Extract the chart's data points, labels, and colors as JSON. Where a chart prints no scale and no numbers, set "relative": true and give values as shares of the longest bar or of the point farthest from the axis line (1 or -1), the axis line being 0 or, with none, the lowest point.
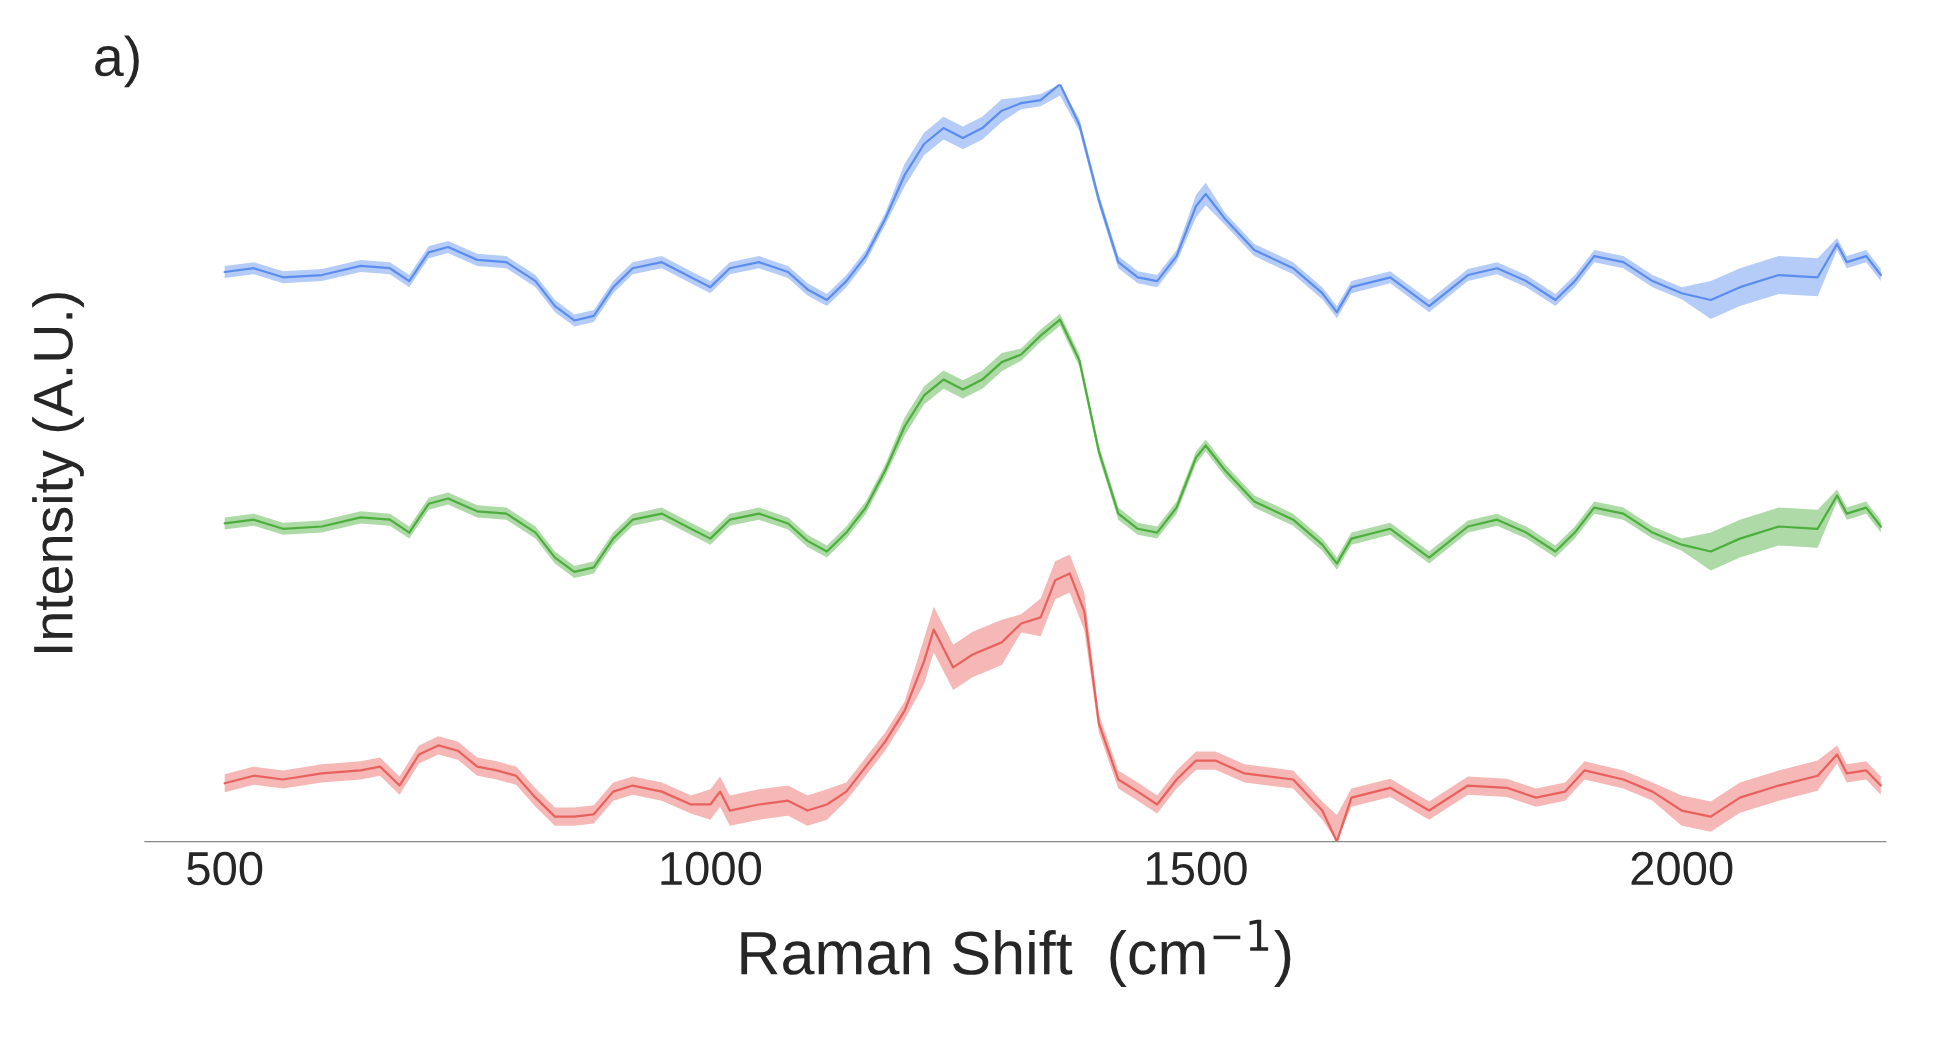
{
  "chart_data": {
    "type": "line",
    "title": "a)",
    "xlabel": "Raman Shift  (cm$^{−1}$)",
    "ylabel": "Intensity (A.U.)",
    "relative": true,
    "xlim": [
      418,
      2210
    ],
    "xticks": [
      500,
      1000,
      1500,
      2000
    ],
    "grid": false,
    "series": [
      {
        "color": "#5b8def",
        "x": [
          500,
          530,
          560,
          600,
          640,
          670,
          690,
          710,
          730,
          760,
          790,
          820,
          840,
          860,
          880,
          900,
          920,
          950,
          980,
          1000,
          1020,
          1050,
          1080,
          1100,
          1120,
          1140,
          1160,
          1180,
          1200,
          1220,
          1240,
          1260,
          1280,
          1300,
          1320,
          1340,
          1360,
          1380,
          1400,
          1420,
          1440,
          1460,
          1480,
          1500,
          1510,
          1530,
          1560,
          1600,
          1630,
          1645,
          1660,
          1700,
          1740,
          1780,
          1810,
          1840,
          1870,
          1890,
          1910,
          1940,
          1970,
          2000,
          2030,
          2060,
          2100,
          2140,
          2160,
          2170,
          2190,
          2205
        ],
        "values": [
          0.752,
          0.757,
          0.745,
          0.748,
          0.76,
          0.757,
          0.74,
          0.778,
          0.785,
          0.768,
          0.765,
          0.74,
          0.707,
          0.688,
          0.694,
          0.732,
          0.757,
          0.765,
          0.745,
          0.732,
          0.757,
          0.765,
          0.752,
          0.729,
          0.715,
          0.74,
          0.773,
          0.822,
          0.88,
          0.921,
          0.942,
          0.929,
          0.942,
          0.965,
          0.975,
          0.979,
          1.0,
          0.946,
          0.847,
          0.765,
          0.745,
          0.74,
          0.773,
          0.839,
          0.855,
          0.822,
          0.781,
          0.757,
          0.724,
          0.699,
          0.732,
          0.745,
          0.707,
          0.748,
          0.757,
          0.74,
          0.715,
          0.74,
          0.773,
          0.765,
          0.74,
          0.724,
          0.715,
          0.732,
          0.748,
          0.745,
          0.789,
          0.765,
          0.773,
          0.748
        ],
        "lower": [
          0.744,
          0.749,
          0.737,
          0.74,
          0.752,
          0.749,
          0.732,
          0.77,
          0.777,
          0.76,
          0.757,
          0.732,
          0.699,
          0.68,
          0.686,
          0.724,
          0.749,
          0.757,
          0.737,
          0.724,
          0.749,
          0.757,
          0.744,
          0.721,
          0.707,
          0.732,
          0.765,
          0.814,
          0.865,
          0.906,
          0.927,
          0.914,
          0.927,
          0.95,
          0.967,
          0.971,
          0.985,
          0.938,
          0.839,
          0.757,
          0.737,
          0.732,
          0.765,
          0.824,
          0.84,
          0.814,
          0.773,
          0.749,
          0.716,
          0.691,
          0.724,
          0.737,
          0.699,
          0.74,
          0.749,
          0.732,
          0.707,
          0.732,
          0.765,
          0.757,
          0.732,
          0.716,
          0.69,
          0.707,
          0.723,
          0.72,
          0.781,
          0.757,
          0.765,
          0.74
        ],
        "upper": [
          0.76,
          0.765,
          0.753,
          0.756,
          0.768,
          0.765,
          0.748,
          0.786,
          0.793,
          0.776,
          0.773,
          0.748,
          0.715,
          0.696,
          0.702,
          0.74,
          0.765,
          0.773,
          0.753,
          0.74,
          0.765,
          0.773,
          0.76,
          0.737,
          0.723,
          0.748,
          0.781,
          0.83,
          0.895,
          0.936,
          0.957,
          0.944,
          0.957,
          0.98,
          0.983,
          0.987,
          1.0,
          0.954,
          0.855,
          0.773,
          0.753,
          0.748,
          0.781,
          0.854,
          0.87,
          0.83,
          0.789,
          0.765,
          0.732,
          0.707,
          0.74,
          0.753,
          0.715,
          0.756,
          0.765,
          0.748,
          0.723,
          0.748,
          0.781,
          0.773,
          0.748,
          0.732,
          0.74,
          0.757,
          0.773,
          0.77,
          0.797,
          0.773,
          0.781,
          0.756
        ]
      },
      {
        "color": "#4cae3c",
        "x": [
          500,
          530,
          560,
          600,
          640,
          670,
          690,
          710,
          730,
          760,
          790,
          820,
          840,
          860,
          880,
          900,
          920,
          950,
          980,
          1000,
          1020,
          1050,
          1080,
          1100,
          1120,
          1140,
          1160,
          1180,
          1200,
          1220,
          1240,
          1260,
          1280,
          1300,
          1320,
          1340,
          1360,
          1380,
          1400,
          1420,
          1440,
          1460,
          1480,
          1500,
          1510,
          1530,
          1560,
          1600,
          1630,
          1645,
          1660,
          1700,
          1740,
          1780,
          1810,
          1840,
          1870,
          1890,
          1910,
          1940,
          1970,
          2000,
          2030,
          2060,
          2100,
          2140,
          2160,
          2170,
          2190,
          2205
        ],
        "values": [
          0.42,
          0.425,
          0.413,
          0.416,
          0.428,
          0.425,
          0.408,
          0.446,
          0.453,
          0.436,
          0.433,
          0.408,
          0.375,
          0.356,
          0.362,
          0.4,
          0.425,
          0.433,
          0.413,
          0.4,
          0.425,
          0.433,
          0.42,
          0.397,
          0.383,
          0.408,
          0.441,
          0.49,
          0.548,
          0.589,
          0.61,
          0.597,
          0.61,
          0.633,
          0.643,
          0.668,
          0.689,
          0.635,
          0.515,
          0.433,
          0.413,
          0.408,
          0.441,
          0.507,
          0.523,
          0.49,
          0.449,
          0.425,
          0.392,
          0.367,
          0.4,
          0.413,
          0.375,
          0.416,
          0.425,
          0.408,
          0.383,
          0.408,
          0.441,
          0.433,
          0.408,
          0.392,
          0.383,
          0.4,
          0.416,
          0.413,
          0.457,
          0.433,
          0.441,
          0.416
        ],
        "lower": [
          0.412,
          0.417,
          0.405,
          0.408,
          0.42,
          0.417,
          0.4,
          0.438,
          0.445,
          0.428,
          0.425,
          0.4,
          0.367,
          0.348,
          0.354,
          0.392,
          0.417,
          0.425,
          0.405,
          0.392,
          0.417,
          0.425,
          0.412,
          0.389,
          0.375,
          0.4,
          0.433,
          0.482,
          0.536,
          0.577,
          0.598,
          0.585,
          0.598,
          0.621,
          0.635,
          0.66,
          0.681,
          0.627,
          0.507,
          0.425,
          0.405,
          0.4,
          0.433,
          0.499,
          0.515,
          0.482,
          0.441,
          0.417,
          0.384,
          0.359,
          0.392,
          0.405,
          0.367,
          0.408,
          0.417,
          0.4,
          0.375,
          0.4,
          0.433,
          0.425,
          0.4,
          0.384,
          0.358,
          0.375,
          0.391,
          0.388,
          0.449,
          0.425,
          0.433,
          0.408
        ],
        "upper": [
          0.428,
          0.433,
          0.421,
          0.424,
          0.436,
          0.433,
          0.416,
          0.454,
          0.461,
          0.444,
          0.441,
          0.416,
          0.383,
          0.364,
          0.37,
          0.408,
          0.433,
          0.441,
          0.421,
          0.408,
          0.433,
          0.441,
          0.428,
          0.405,
          0.391,
          0.416,
          0.449,
          0.498,
          0.56,
          0.601,
          0.622,
          0.609,
          0.622,
          0.645,
          0.651,
          0.676,
          0.697,
          0.643,
          0.523,
          0.441,
          0.421,
          0.416,
          0.449,
          0.515,
          0.531,
          0.498,
          0.457,
          0.433,
          0.4,
          0.375,
          0.408,
          0.421,
          0.383,
          0.424,
          0.433,
          0.416,
          0.391,
          0.416,
          0.449,
          0.441,
          0.416,
          0.4,
          0.408,
          0.425,
          0.441,
          0.438,
          0.465,
          0.441,
          0.449,
          0.424
        ]
      },
      {
        "color": "#e8615d",
        "x": [
          500,
          530,
          560,
          600,
          640,
          660,
          680,
          700,
          720,
          740,
          760,
          780,
          800,
          820,
          840,
          860,
          880,
          900,
          920,
          950,
          980,
          1000,
          1010,
          1020,
          1050,
          1080,
          1100,
          1120,
          1140,
          1160,
          1180,
          1200,
          1220,
          1230,
          1250,
          1270,
          1300,
          1320,
          1340,
          1355,
          1370,
          1385,
          1400,
          1420,
          1440,
          1460,
          1480,
          1500,
          1520,
          1550,
          1600,
          1630,
          1645,
          1660,
          1700,
          1740,
          1780,
          1820,
          1850,
          1880,
          1900,
          1940,
          1970,
          2000,
          2030,
          2060,
          2100,
          2140,
          2160,
          2170,
          2190,
          2205
        ],
        "values": [
          0.077,
          0.087,
          0.082,
          0.09,
          0.094,
          0.099,
          0.074,
          0.115,
          0.127,
          0.12,
          0.099,
          0.094,
          0.087,
          0.058,
          0.033,
          0.033,
          0.036,
          0.066,
          0.074,
          0.066,
          0.049,
          0.049,
          0.066,
          0.041,
          0.049,
          0.054,
          0.041,
          0.049,
          0.066,
          0.099,
          0.132,
          0.173,
          0.238,
          0.28,
          0.23,
          0.247,
          0.263,
          0.288,
          0.296,
          0.345,
          0.354,
          0.304,
          0.156,
          0.082,
          0.066,
          0.049,
          0.082,
          0.107,
          0.107,
          0.09,
          0.082,
          0.041,
          0.0,
          0.058,
          0.071,
          0.041,
          0.074,
          0.071,
          0.058,
          0.066,
          0.094,
          0.082,
          0.066,
          0.041,
          0.033,
          0.058,
          0.074,
          0.087,
          0.115,
          0.09,
          0.094,
          0.074
        ],
        "lower": [
          0.065,
          0.075,
          0.07,
          0.078,
          0.082,
          0.087,
          0.062,
          0.103,
          0.115,
          0.108,
          0.087,
          0.082,
          0.075,
          0.046,
          0.021,
          0.021,
          0.024,
          0.054,
          0.062,
          0.054,
          0.037,
          0.029,
          0.046,
          0.021,
          0.029,
          0.034,
          0.021,
          0.029,
          0.054,
          0.087,
          0.12,
          0.161,
          0.208,
          0.25,
          0.2,
          0.217,
          0.233,
          0.276,
          0.271,
          0.32,
          0.329,
          0.279,
          0.144,
          0.07,
          0.054,
          0.037,
          0.07,
          0.095,
          0.095,
          0.078,
          0.07,
          0.029,
          0.0,
          0.046,
          0.059,
          0.029,
          0.062,
          0.059,
          0.046,
          0.054,
          0.082,
          0.07,
          0.054,
          0.021,
          0.013,
          0.038,
          0.054,
          0.067,
          0.103,
          0.078,
          0.082,
          0.062
        ],
        "upper": [
          0.089,
          0.099,
          0.094,
          0.102,
          0.106,
          0.111,
          0.086,
          0.127,
          0.139,
          0.132,
          0.111,
          0.106,
          0.099,
          0.07,
          0.045,
          0.045,
          0.048,
          0.078,
          0.086,
          0.078,
          0.061,
          0.069,
          0.086,
          0.061,
          0.069,
          0.074,
          0.061,
          0.069,
          0.078,
          0.111,
          0.144,
          0.185,
          0.268,
          0.31,
          0.26,
          0.277,
          0.293,
          0.3,
          0.321,
          0.37,
          0.379,
          0.329,
          0.168,
          0.094,
          0.078,
          0.061,
          0.094,
          0.119,
          0.119,
          0.102,
          0.094,
          0.053,
          0.035,
          0.07,
          0.083,
          0.053,
          0.086,
          0.083,
          0.07,
          0.078,
          0.106,
          0.094,
          0.078,
          0.061,
          0.053,
          0.078,
          0.094,
          0.107,
          0.127,
          0.102,
          0.106,
          0.086
        ]
      }
    ]
  }
}
